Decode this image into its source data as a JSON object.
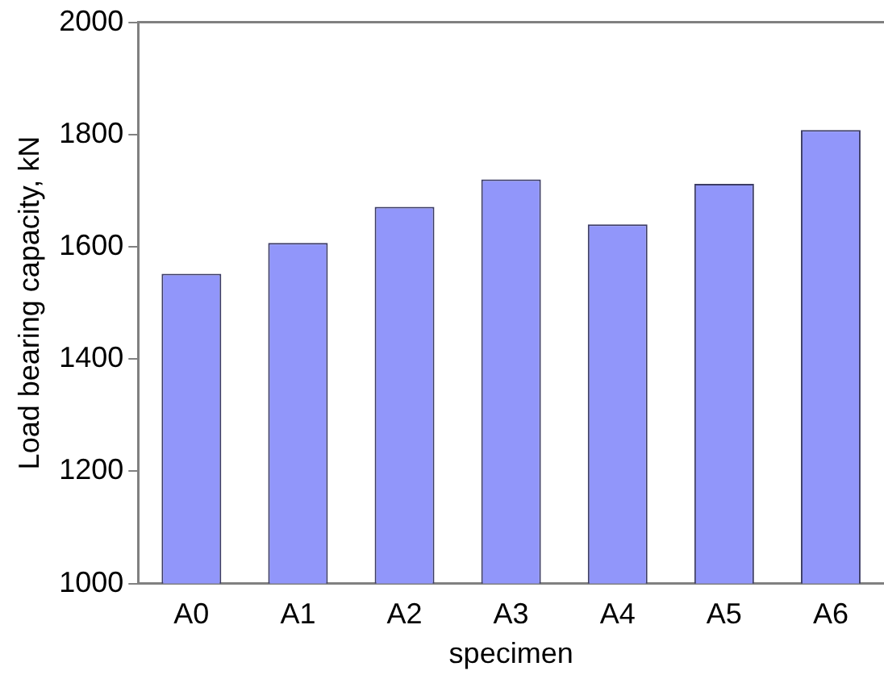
{
  "chart_data": {
    "type": "bar",
    "xlabel": "specimen",
    "ylabel": "Load bearing capacity, kN",
    "categories": [
      "A0",
      "A1",
      "A2",
      "A3",
      "A4",
      "A5",
      "A6"
    ],
    "values": [
      1552,
      1607,
      1671,
      1720,
      1640,
      1712,
      1808
    ],
    "color": "#9196fa",
    "ylim": [
      1000,
      2000
    ],
    "yticks": [
      1000,
      1200,
      1400,
      1600,
      1800,
      2000
    ],
    "grid": false,
    "legend": false
  }
}
